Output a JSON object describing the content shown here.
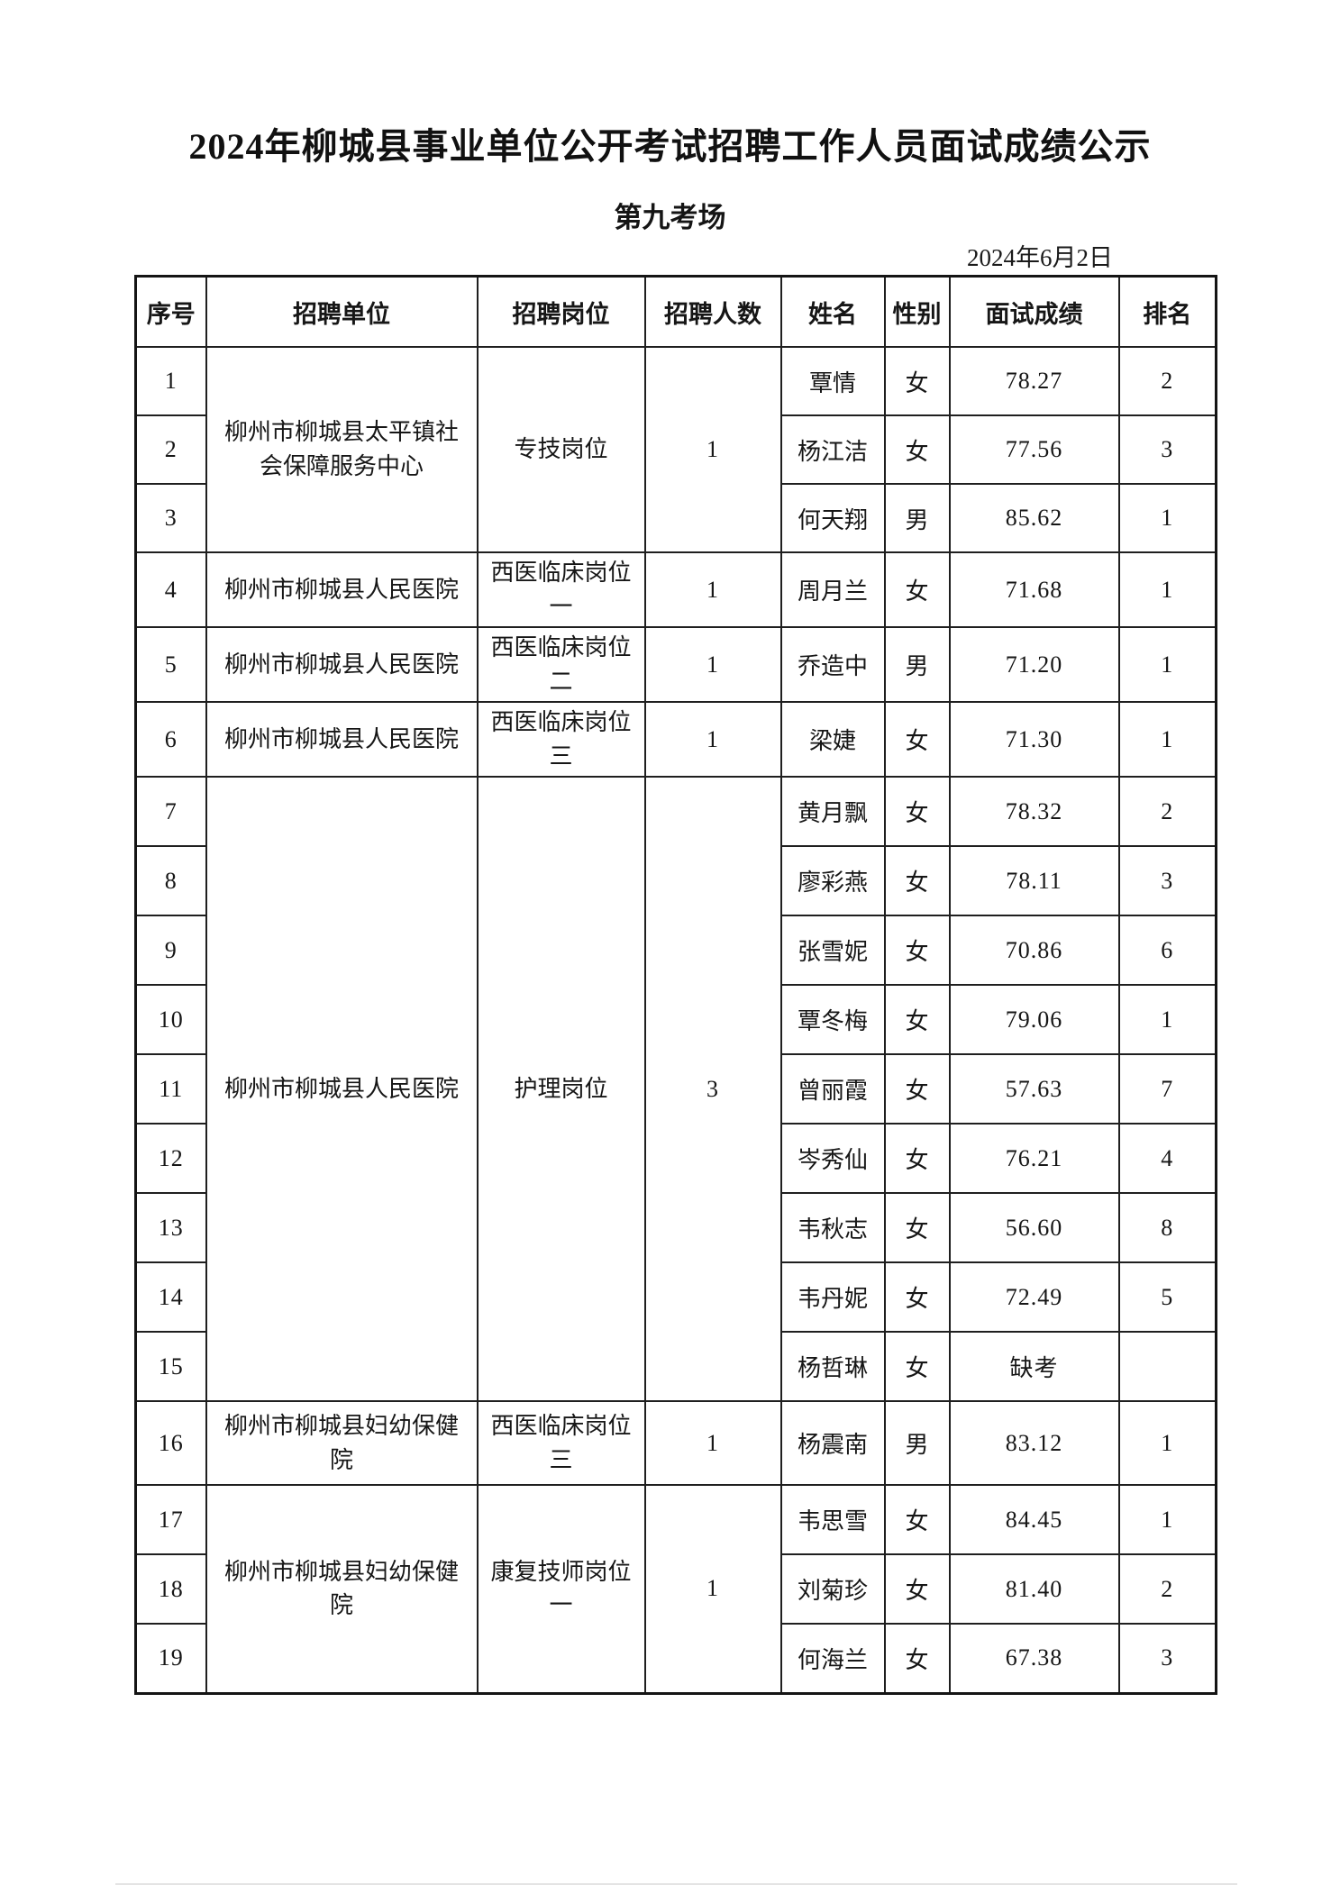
{
  "doc": {
    "title": "2024年柳城县事业单位公开考试招聘工作人员面试成绩公示",
    "subtitle": "第九考场",
    "date": "2024年6月2日"
  },
  "table": {
    "headers": [
      "序号",
      "招聘单位",
      "招聘岗位",
      "招聘人数",
      "姓名",
      "性别",
      "面试成绩",
      "排名"
    ],
    "rows": [
      {
        "no": "1",
        "unit": "柳州市柳城县太平镇社会保障服务中心",
        "unit_span": 3,
        "post": "专技岗位",
        "post_span": 3,
        "count": "1",
        "count_span": 3,
        "name": "覃情",
        "gender": "女",
        "score": "78.27",
        "rank": "2"
      },
      {
        "no": "2",
        "name": "杨江洁",
        "gender": "女",
        "score": "77.56",
        "rank": "3"
      },
      {
        "no": "3",
        "name": "何天翔",
        "gender": "男",
        "score": "85.62",
        "rank": "1"
      },
      {
        "no": "4",
        "unit": "柳州市柳城县人民医院",
        "unit_span": 1,
        "post": "西医临床岗位一",
        "post_span": 1,
        "count": "1",
        "count_span": 1,
        "name": "周月兰",
        "gender": "女",
        "score": "71.68",
        "rank": "1"
      },
      {
        "no": "5",
        "unit": "柳州市柳城县人民医院",
        "unit_span": 1,
        "post": "西医临床岗位二",
        "post_span": 1,
        "count": "1",
        "count_span": 1,
        "name": "乔造中",
        "gender": "男",
        "score": "71.20",
        "rank": "1"
      },
      {
        "no": "6",
        "unit": "柳州市柳城县人民医院",
        "unit_span": 1,
        "post": "西医临床岗位三",
        "post_span": 1,
        "count": "1",
        "count_span": 1,
        "name": "梁婕",
        "gender": "女",
        "score": "71.30",
        "rank": "1"
      },
      {
        "no": "7",
        "unit": "柳州市柳城县人民医院",
        "unit_span": 9,
        "post": "护理岗位",
        "post_span": 9,
        "count": "3",
        "count_span": 9,
        "name": "黄月飘",
        "gender": "女",
        "score": "78.32",
        "rank": "2"
      },
      {
        "no": "8",
        "name": "廖彩燕",
        "gender": "女",
        "score": "78.11",
        "rank": "3"
      },
      {
        "no": "9",
        "name": "张雪妮",
        "gender": "女",
        "score": "70.86",
        "rank": "6"
      },
      {
        "no": "10",
        "name": "覃冬梅",
        "gender": "女",
        "score": "79.06",
        "rank": "1"
      },
      {
        "no": "11",
        "name": "曾丽霞",
        "gender": "女",
        "score": "57.63",
        "rank": "7"
      },
      {
        "no": "12",
        "name": "岑秀仙",
        "gender": "女",
        "score": "76.21",
        "rank": "4"
      },
      {
        "no": "13",
        "name": "韦秋志",
        "gender": "女",
        "score": "56.60",
        "rank": "8"
      },
      {
        "no": "14",
        "name": "韦丹妮",
        "gender": "女",
        "score": "72.49",
        "rank": "5"
      },
      {
        "no": "15",
        "name": "杨哲琳",
        "gender": "女",
        "score": "缺考",
        "rank": ""
      },
      {
        "no": "16",
        "unit": "柳州市柳城县妇幼保健院",
        "unit_span": 1,
        "post": "西医临床岗位三",
        "post_span": 1,
        "count": "1",
        "count_span": 1,
        "name": "杨震南",
        "gender": "男",
        "score": "83.12",
        "rank": "1"
      },
      {
        "no": "17",
        "unit": "柳州市柳城县妇幼保健院",
        "unit_span": 3,
        "post": "康复技师岗位一",
        "post_span": 3,
        "count": "1",
        "count_span": 3,
        "name": "韦思雪",
        "gender": "女",
        "score": "84.45",
        "rank": "1"
      },
      {
        "no": "18",
        "name": "刘菊珍",
        "gender": "女",
        "score": "81.40",
        "rank": "2"
      },
      {
        "no": "19",
        "name": "何海兰",
        "gender": "女",
        "score": "67.38",
        "rank": "3"
      }
    ]
  },
  "colors": {
    "text": "#151515",
    "border": "#1f1f1f",
    "background": "#ffffff"
  }
}
